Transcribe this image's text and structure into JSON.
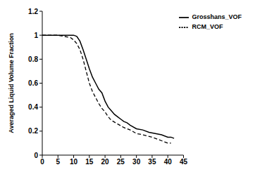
{
  "chart_data": {
    "type": "line",
    "ylabel": "Averaged Liquid Volume Fraction",
    "xlim": [
      0,
      45
    ],
    "xticks": [
      0,
      5,
      10,
      15,
      20,
      25,
      30,
      35,
      40,
      45
    ],
    "ylim": [
      0,
      1.2
    ],
    "yticks": [
      0,
      0.2,
      0.4,
      0.6,
      0.8,
      1,
      1.2
    ],
    "legend": "upper right",
    "grid": false,
    "series": [
      {
        "name": "RCM_VOF",
        "color": "#000000",
        "line_style": "dashed",
        "marker": "none",
        "x": [
          0,
          5,
          7,
          9,
          10,
          11,
          12,
          13,
          14,
          15,
          16,
          17,
          18,
          19,
          20,
          21,
          22,
          24,
          26,
          28,
          30,
          32,
          35,
          38,
          40,
          41
        ],
        "values": [
          1,
          1,
          0.99,
          0.98,
          0.96,
          0.93,
          0.88,
          0.8,
          0.7,
          0.6,
          0.53,
          0.48,
          0.43,
          0.39,
          0.36,
          0.32,
          0.29,
          0.26,
          0.23,
          0.21,
          0.18,
          0.17,
          0.15,
          0.12,
          0.1,
          0.1
        ]
      },
      {
        "name": "Grosshans_VOF",
        "color": "#000000",
        "line_style": "solid",
        "marker": "none",
        "x": [
          0,
          5,
          8,
          10,
          11,
          12,
          13,
          14,
          15,
          16,
          17,
          18,
          19,
          20,
          21,
          22,
          23,
          24,
          25,
          26,
          27,
          28,
          30,
          32,
          34,
          36,
          38,
          40,
          41,
          42
        ],
        "values": [
          1,
          1,
          1,
          1,
          0.99,
          0.95,
          0.88,
          0.8,
          0.72,
          0.65,
          0.6,
          0.55,
          0.52,
          0.45,
          0.4,
          0.37,
          0.34,
          0.32,
          0.3,
          0.28,
          0.27,
          0.25,
          0.22,
          0.21,
          0.19,
          0.18,
          0.17,
          0.15,
          0.15,
          0.14
        ]
      }
    ]
  }
}
